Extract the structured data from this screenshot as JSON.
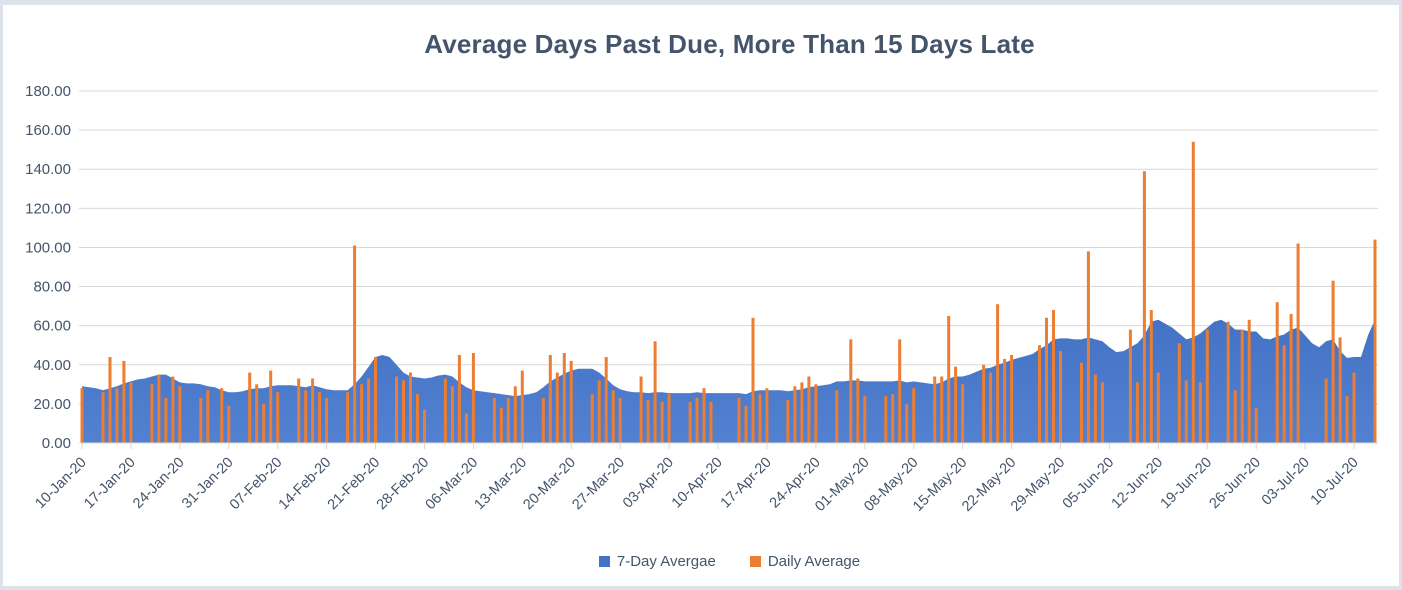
{
  "window": {
    "background": "#FFFFFF",
    "frame_border_color": "#DCE3EB"
  },
  "title": {
    "text": "Average Days Past Due, More Than 15 Days Late",
    "color": "#44546A"
  },
  "legend": {
    "position": "bottom",
    "items": [
      {
        "label": "7-Day Avergae",
        "color": "#4472C4",
        "series": "area"
      },
      {
        "label": "Daily Average",
        "color": "#ED7D31",
        "series": "bar"
      }
    ]
  },
  "chart_data": {
    "type": "combo-area-bar",
    "title": "Average Days Past Due, More Than 15 Days Late",
    "xlabel": "",
    "ylabel": "",
    "grid": "horizontal",
    "legend_position": "bottom",
    "colors": {
      "area_fill": "#4472C4",
      "area_fill_bottom": "#5381D2",
      "bar_fill": "#ED7D31",
      "gridline": "#D9D9D9",
      "axis_line": "#D9D9D9",
      "axis_text": "#44546A"
    },
    "y_axis": {
      "min": 0,
      "max": 180,
      "step": 20,
      "tick_labels": [
        "0.00",
        "20.00",
        "40.00",
        "60.00",
        "80.00",
        "100.00",
        "120.00",
        "140.00",
        "160.00",
        "180.00"
      ]
    },
    "x_axis": {
      "first_day_label": "10-Jan-20",
      "tick_interval_days": 7,
      "total_days": 186,
      "tick_labels": [
        "10-Jan-20",
        "17-Jan-20",
        "24-Jan-20",
        "31-Jan-20",
        "07-Feb-20",
        "14-Feb-20",
        "21-Feb-20",
        "28-Feb-20",
        "06-Mar-20",
        "13-Mar-20",
        "20-Mar-20",
        "27-Mar-20",
        "03-Apr-20",
        "10-Apr-20",
        "17-Apr-20",
        "24-Apr-20",
        "01-May-20",
        "08-May-20",
        "15-May-20",
        "22-May-20",
        "29-May-20",
        "05-Jun-20",
        "12-Jun-20",
        "19-Jun-20",
        "26-Jun-20",
        "03-Jul-20",
        "10-Jul-20"
      ]
    },
    "series": [
      {
        "name": "7-Day Avergae",
        "type": "area",
        "color": "#4472C4",
        "values": [
          29,
          28.5,
          28,
          27,
          28,
          29,
          30.5,
          31.5,
          32.5,
          33,
          34,
          35,
          35,
          33,
          31,
          30.5,
          30.5,
          30,
          29,
          28.5,
          27,
          26,
          26,
          26.5,
          27.5,
          28,
          28,
          29,
          29.5,
          29.5,
          29.5,
          29,
          28.5,
          29.5,
          28.5,
          27.5,
          27,
          27,
          27,
          30,
          34,
          39,
          44,
          45,
          44,
          40,
          36,
          34,
          33.5,
          33,
          33.5,
          34.5,
          35,
          34,
          31,
          28.5,
          27,
          26.5,
          26,
          25.5,
          25,
          24.5,
          24,
          24.5,
          25,
          26,
          28.5,
          31.5,
          33.5,
          35.5,
          37,
          38,
          38,
          38,
          36,
          33,
          29.5,
          27.5,
          26.5,
          26,
          26,
          25.5,
          26,
          26,
          25.5,
          25.5,
          25.5,
          25.5,
          26,
          25.5,
          25.5,
          25.5,
          25.5,
          25.5,
          25.5,
          25,
          26.5,
          27,
          27,
          27,
          27,
          26.5,
          27,
          27.5,
          28.5,
          29,
          29.5,
          30,
          31.5,
          31.5,
          32,
          32,
          31.5,
          31.5,
          31.5,
          31.5,
          31.5,
          32,
          31,
          31.5,
          31,
          30.5,
          30,
          31,
          33,
          34,
          34,
          35,
          36.5,
          38,
          38.5,
          40,
          41,
          42.5,
          43.5,
          44.5,
          45.5,
          48,
          50,
          53,
          53.5,
          53.5,
          53,
          53,
          54,
          53,
          52,
          49,
          46.5,
          47,
          49,
          51,
          55,
          62,
          63,
          61,
          59,
          56,
          53,
          54,
          56,
          59,
          62,
          63,
          61,
          58,
          58,
          57,
          57,
          53.5,
          53,
          54.5,
          55.5,
          58,
          59,
          55,
          51,
          49,
          52,
          53,
          47,
          43.5,
          44,
          44,
          55,
          63
        ]
      },
      {
        "name": "Daily Average",
        "type": "bar",
        "color": "#ED7D31",
        "values": [
          28,
          null,
          null,
          26,
          44,
          28,
          42,
          31,
          null,
          null,
          30,
          35,
          23,
          34,
          29,
          null,
          null,
          23,
          27,
          null,
          28,
          19,
          null,
          null,
          36,
          30,
          20,
          37,
          26,
          null,
          null,
          33,
          27,
          33,
          26,
          23,
          null,
          null,
          26,
          101,
          30,
          33,
          44,
          null,
          null,
          34,
          32,
          36,
          25,
          17,
          null,
          null,
          33,
          29,
          45,
          15,
          46,
          null,
          null,
          23,
          18,
          23,
          29,
          37,
          null,
          null,
          23,
          45,
          36,
          46,
          42,
          null,
          null,
          25,
          32,
          44,
          27,
          23,
          null,
          null,
          34,
          22,
          52,
          21,
          25,
          null,
          null,
          21,
          23,
          28,
          21,
          null,
          null,
          null,
          23,
          19,
          64,
          25,
          28,
          null,
          null,
          22,
          29,
          31,
          34,
          30,
          null,
          null,
          27,
          null,
          53,
          33,
          24,
          null,
          null,
          24,
          25,
          53,
          20,
          28,
          null,
          null,
          34,
          34,
          65,
          39,
          30,
          null,
          null,
          40,
          36,
          71,
          43,
          45,
          null,
          null,
          null,
          50,
          64,
          68,
          47,
          null,
          null,
          41,
          98,
          35,
          31,
          null,
          null,
          null,
          58,
          31,
          139,
          68,
          36,
          null,
          null,
          51,
          32,
          154,
          31,
          58,
          null,
          null,
          62,
          27,
          58,
          63,
          18,
          null,
          null,
          72,
          50,
          66,
          102,
          null,
          null,
          null,
          33,
          83,
          54,
          24,
          36,
          null,
          null,
          104
        ]
      }
    ]
  }
}
